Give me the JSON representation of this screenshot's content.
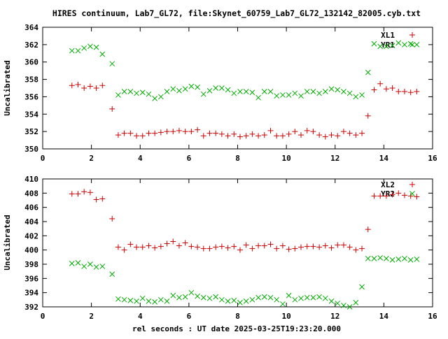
{
  "chart_data": {
    "type": "scatter",
    "title": "HIRES continuum, Lab7_GL72, file:Skynet_60759_Lab7_GL72_132142_82005.cyb.txt",
    "xlabel": "rel seconds : UT date 2025-03-25T19:23:20.000",
    "colors": {
      "red": "#cc0000",
      "green": "#00aa00"
    },
    "panels": [
      {
        "ylabel": "Uncalibrated",
        "xlim": [
          0,
          16
        ],
        "ylim": [
          350,
          364
        ],
        "xticks": [
          0,
          2,
          4,
          6,
          8,
          10,
          12,
          14,
          16
        ],
        "yticks": [
          350,
          352,
          354,
          356,
          358,
          360,
          362,
          364
        ],
        "legend_position": "top-right",
        "series": [
          {
            "name": "XL1",
            "marker": "plus",
            "color": "red",
            "x": [
              1.2,
              1.45,
              1.7,
              1.95,
              2.2,
              2.45,
              2.85,
              3.1,
              3.35,
              3.6,
              3.85,
              4.1,
              4.35,
              4.6,
              4.85,
              5.1,
              5.35,
              5.6,
              5.85,
              6.1,
              6.35,
              6.6,
              6.85,
              7.1,
              7.35,
              7.6,
              7.85,
              8.1,
              8.35,
              8.6,
              8.85,
              9.1,
              9.35,
              9.6,
              9.85,
              10.1,
              10.35,
              10.6,
              10.85,
              11.1,
              11.35,
              11.6,
              11.85,
              12.1,
              12.35,
              12.6,
              12.85,
              13.1,
              13.35,
              13.6,
              13.85,
              14.1,
              14.35,
              14.6,
              14.85,
              15.1,
              15.35
            ],
            "y": [
              357.3,
              357.4,
              357.0,
              357.2,
              357.0,
              357.3,
              354.6,
              351.6,
              351.8,
              351.8,
              351.5,
              351.5,
              351.8,
              351.8,
              351.9,
              352.0,
              352.0,
              352.1,
              352.0,
              352.0,
              352.2,
              351.5,
              351.8,
              351.8,
              351.7,
              351.5,
              351.7,
              351.4,
              351.5,
              351.7,
              351.5,
              351.6,
              352.1,
              351.5,
              351.5,
              351.7,
              352.0,
              351.6,
              352.1,
              352.0,
              351.6,
              351.4,
              351.6,
              351.5,
              352.0,
              351.8,
              351.6,
              351.8,
              353.8,
              356.8,
              357.5,
              356.9,
              357.0,
              356.6,
              356.6,
              356.5,
              356.6
            ]
          },
          {
            "name": "YR1",
            "marker": "cross",
            "color": "green",
            "x": [
              1.2,
              1.45,
              1.7,
              1.95,
              2.2,
              2.45,
              2.85,
              3.1,
              3.35,
              3.6,
              3.85,
              4.1,
              4.35,
              4.6,
              4.85,
              5.1,
              5.35,
              5.6,
              5.85,
              6.1,
              6.35,
              6.6,
              6.85,
              7.1,
              7.35,
              7.6,
              7.85,
              8.1,
              8.35,
              8.6,
              8.85,
              9.1,
              9.35,
              9.6,
              9.85,
              10.1,
              10.35,
              10.6,
              10.85,
              11.1,
              11.35,
              11.6,
              11.85,
              12.1,
              12.35,
              12.6,
              12.85,
              13.1,
              13.35,
              13.6,
              13.85,
              14.1,
              14.35,
              14.6,
              14.85,
              15.1,
              15.35
            ],
            "y": [
              361.3,
              361.3,
              361.6,
              361.8,
              361.7,
              360.9,
              359.8,
              356.2,
              356.6,
              356.6,
              356.4,
              356.5,
              356.3,
              355.8,
              356.0,
              356.6,
              356.9,
              356.7,
              356.9,
              357.2,
              357.1,
              356.3,
              356.7,
              357.0,
              357.0,
              356.8,
              356.4,
              356.6,
              356.6,
              356.5,
              355.9,
              356.6,
              356.6,
              356.1,
              356.2,
              356.2,
              356.4,
              356.1,
              356.6,
              356.6,
              356.4,
              356.6,
              356.9,
              356.8,
              356.6,
              356.4,
              356.0,
              356.2,
              358.8,
              362.1,
              361.8,
              361.8,
              361.9,
              362.2,
              362.0,
              362.1,
              362.0
            ]
          }
        ]
      },
      {
        "ylabel": "Uncalibrated",
        "xlim": [
          0,
          16
        ],
        "ylim": [
          392,
          410
        ],
        "xticks": [
          0,
          2,
          4,
          6,
          8,
          10,
          12,
          14,
          16
        ],
        "yticks": [
          392,
          394,
          396,
          398,
          400,
          402,
          404,
          406,
          408,
          410
        ],
        "legend_position": "top-right",
        "series": [
          {
            "name": "XL2",
            "marker": "plus",
            "color": "red",
            "x": [
              1.2,
              1.45,
              1.7,
              1.95,
              2.2,
              2.45,
              2.85,
              3.1,
              3.35,
              3.6,
              3.85,
              4.1,
              4.35,
              4.6,
              4.85,
              5.1,
              5.35,
              5.6,
              5.85,
              6.1,
              6.35,
              6.6,
              6.85,
              7.1,
              7.35,
              7.6,
              7.85,
              8.1,
              8.35,
              8.6,
              8.85,
              9.1,
              9.35,
              9.6,
              9.85,
              10.1,
              10.35,
              10.6,
              10.85,
              11.1,
              11.35,
              11.6,
              11.85,
              12.1,
              12.35,
              12.6,
              12.85,
              13.1,
              13.35,
              13.6,
              13.85,
              14.1,
              14.35,
              14.6,
              14.85,
              15.1,
              15.35
            ],
            "y": [
              407.9,
              407.9,
              408.2,
              408.1,
              407.1,
              407.2,
              404.4,
              400.4,
              400.0,
              400.8,
              400.4,
              400.4,
              400.6,
              400.3,
              400.5,
              400.9,
              401.2,
              400.6,
              401.0,
              400.5,
              400.4,
              400.2,
              400.2,
              400.4,
              400.5,
              400.3,
              400.5,
              400.0,
              400.7,
              400.2,
              400.6,
              400.6,
              400.8,
              400.2,
              400.6,
              400.1,
              400.2,
              400.4,
              400.5,
              400.5,
              400.4,
              400.6,
              400.3,
              400.7,
              400.7,
              400.4,
              400.0,
              400.2,
              402.9,
              407.6,
              407.6,
              407.6,
              407.8,
              408.0,
              407.7,
              407.6,
              407.5
            ]
          },
          {
            "name": "YR2",
            "marker": "cross",
            "color": "green",
            "x": [
              1.2,
              1.45,
              1.7,
              1.95,
              2.2,
              2.45,
              2.85,
              3.1,
              3.35,
              3.6,
              3.85,
              4.1,
              4.35,
              4.6,
              4.85,
              5.1,
              5.35,
              5.6,
              5.85,
              6.1,
              6.35,
              6.6,
              6.85,
              7.1,
              7.35,
              7.6,
              7.85,
              8.1,
              8.35,
              8.6,
              8.85,
              9.1,
              9.35,
              9.6,
              9.85,
              10.1,
              10.35,
              10.6,
              10.85,
              11.1,
              11.35,
              11.6,
              11.85,
              12.1,
              12.35,
              12.6,
              12.85,
              13.1,
              13.35,
              13.6,
              13.85,
              14.1,
              14.35,
              14.6,
              14.85,
              15.1,
              15.35
            ],
            "y": [
              398.1,
              398.2,
              397.7,
              398.0,
              397.6,
              397.7,
              396.6,
              393.1,
              393.0,
              392.9,
              392.8,
              393.2,
              392.8,
              392.7,
              393.0,
              392.8,
              393.6,
              393.3,
              393.4,
              394.0,
              393.5,
              393.3,
              393.2,
              393.4,
              393.0,
              392.8,
              392.9,
              392.6,
              392.8,
              393.0,
              393.3,
              393.4,
              393.3,
              393.0,
              392.4,
              393.6,
              393.0,
              393.2,
              393.3,
              393.3,
              393.4,
              393.2,
              392.8,
              392.5,
              392.2,
              392.0,
              392.6,
              394.8,
              398.8,
              398.8,
              398.9,
              398.8,
              398.6,
              398.7,
              398.8,
              398.6,
              398.7
            ]
          }
        ]
      }
    ]
  }
}
